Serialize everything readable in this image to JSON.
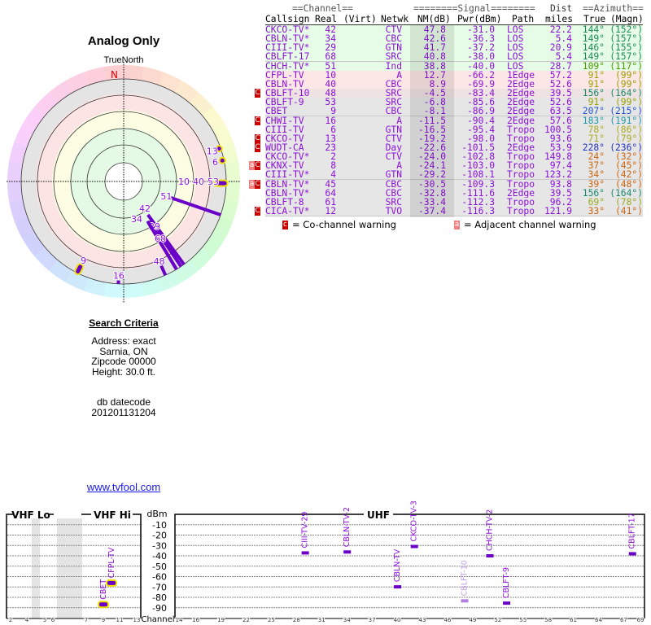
{
  "polar": {
    "title": "Analog Only",
    "north_label": "TrueNorth",
    "n_marker": "N",
    "stations": [
      {
        "label": "42",
        "az": 144,
        "nm": 47.8,
        "highlight": false
      },
      {
        "label": "34",
        "az": 149,
        "nm": 42.6,
        "highlight": false
      },
      {
        "label": "29",
        "az": 146,
        "nm": 41.7,
        "highlight": false
      },
      {
        "label": "68",
        "az": 149,
        "nm": 40.8,
        "highlight": false
      },
      {
        "label": "51",
        "az": 109,
        "nm": 38.8,
        "highlight": false
      },
      {
        "label": "10",
        "az": 91,
        "nm": 12.7,
        "highlight": true
      },
      {
        "label": "40",
        "az": 91,
        "nm": 8.9,
        "highlight": true
      },
      {
        "label": "48",
        "az": 156,
        "nm": -4.5,
        "highlight": false
      },
      {
        "label": "53",
        "az": 91,
        "nm": -6.8,
        "highlight": true
      },
      {
        "label": "9",
        "az": 207,
        "nm": -8.1,
        "highlight": true
      },
      {
        "label": "16",
        "az": 183,
        "nm": -11.5,
        "highlight": false
      },
      {
        "label": "6",
        "az": 78,
        "nm": -16.5,
        "highlight": true
      },
      {
        "label": "13",
        "az": 71,
        "nm": -19.2,
        "highlight": true
      }
    ]
  },
  "search": {
    "title": "Search Criteria",
    "address": "Address: exact",
    "city": "Sarnia, ON",
    "zipcode": "Zipcode 00000",
    "height": "Height: 30.0 ft.",
    "db_label": "db datecode",
    "db_value": "201201131204"
  },
  "link": "www.tvfool.com",
  "table": {
    "group_headers": {
      "channel": "==Channel==",
      "signal": "========Signal========",
      "dist": "Dist",
      "azimuth": "==Azimuth=="
    },
    "headers": {
      "callsign": "Callsign",
      "real": "Real",
      "virt": "(Virt)",
      "netwk": "Netwk",
      "nm": "NM(dB)",
      "pwr": "Pwr(dBm)",
      "path": "Path",
      "dist": "miles",
      "true": "True",
      "magn": "(Magn)"
    },
    "rows": [
      {
        "callsign": "CKCO-TV*",
        "real": "42",
        "netwk": "CTV",
        "nm": "47.8",
        "pwr": "-31.0",
        "path": "LOS",
        "dist": "22.2",
        "true": "144°",
        "magn": "(152°)",
        "bg": "green",
        "warn": "",
        "azcolor": "#1a8a5a"
      },
      {
        "callsign": "CBLN-TV*",
        "real": "34",
        "netwk": "CBC",
        "nm": "42.6",
        "pwr": "-36.3",
        "path": "LOS",
        "dist": "5.4",
        "true": "149°",
        "magn": "(157°)",
        "bg": "green",
        "warn": "",
        "azcolor": "#1a8a5a"
      },
      {
        "callsign": "CIII-TV*",
        "real": "29",
        "netwk": "GTN",
        "nm": "41.7",
        "pwr": "-37.2",
        "path": "LOS",
        "dist": "20.9",
        "true": "146°",
        "magn": "(155°)",
        "bg": "green",
        "warn": "",
        "azcolor": "#1a8a5a"
      },
      {
        "callsign": "CBLFT-17",
        "real": "68",
        "netwk": "SRC",
        "nm": "40.8",
        "pwr": "-38.0",
        "path": "LOS",
        "dist": "5.4",
        "true": "149°",
        "magn": "(157°)",
        "bg": "green",
        "warn": "",
        "azcolor": "#1a8a5a"
      },
      {
        "callsign": "CHCH-TV*",
        "real": "51",
        "netwk": "Ind",
        "nm": "38.8",
        "pwr": "-40.0",
        "path": "LOS",
        "dist": "28.7",
        "true": "109°",
        "magn": "(117°)",
        "bg": "green",
        "warn": "",
        "azcolor": "#4a9a00"
      },
      {
        "callsign": "CFPL-TV",
        "real": "10",
        "netwk": "A",
        "nm": "12.7",
        "pwr": "-66.2",
        "path": "1Edge",
        "dist": "57.2",
        "true": "91°",
        "magn": "(99°)",
        "bg": "pink",
        "warn": "",
        "azcolor": "#9aa000"
      },
      {
        "callsign": "CBLN-TV",
        "real": "40",
        "netwk": "CBC",
        "nm": "8.9",
        "pwr": "-69.9",
        "path": "2Edge",
        "dist": "52.6",
        "true": "91°",
        "magn": "(99°)",
        "bg": "pink",
        "warn": "",
        "azcolor": "#9aa000"
      },
      {
        "callsign": "CBLFT-10",
        "real": "48",
        "netwk": "SRC",
        "nm": "-4.5",
        "pwr": "-83.4",
        "path": "2Edge",
        "dist": "39.5",
        "true": "156°",
        "magn": "(164°)",
        "bg": "pinkgray",
        "warn": "c",
        "azcolor": "#1a8a6a"
      },
      {
        "callsign": "CBLFT-9",
        "real": "53",
        "netwk": "SRC",
        "nm": "-6.8",
        "pwr": "-85.6",
        "path": "2Edge",
        "dist": "52.6",
        "true": "91°",
        "magn": "(99°)",
        "bg": "gray",
        "warn": "",
        "azcolor": "#9aa000"
      },
      {
        "callsign": "CBET",
        "real": "9",
        "netwk": "CBC",
        "nm": "-8.1",
        "pwr": "-86.9",
        "path": "2Edge",
        "dist": "63.5",
        "true": "207°",
        "magn": "(215°)",
        "bg": "gray",
        "warn": "",
        "azcolor": "#2255cc"
      },
      {
        "callsign": "CHWI-TV",
        "real": "16",
        "netwk": "A",
        "nm": "-11.5",
        "pwr": "-90.4",
        "path": "2Edge",
        "dist": "57.6",
        "true": "183°",
        "magn": "(191°)",
        "bg": "gray",
        "warn": "c",
        "azcolor": "#2299aa"
      },
      {
        "callsign": "CIII-TV",
        "real": "6",
        "netwk": "GTN",
        "nm": "-16.5",
        "pwr": "-95.4",
        "path": "Tropo",
        "dist": "100.5",
        "true": "78°",
        "magn": "(86°)",
        "bg": "gray",
        "warn": "",
        "azcolor": "#aaaa22"
      },
      {
        "callsign": "CKCO-TV",
        "real": "13",
        "netwk": "CTV",
        "nm": "-19.2",
        "pwr": "-98.0",
        "path": "Tropo",
        "dist": "93.6",
        "true": "71°",
        "magn": "(79°)",
        "bg": "gray",
        "warn": "c",
        "azcolor": "#aaaa22"
      },
      {
        "callsign": "WUDT-CA",
        "real": "23",
        "netwk": "Day",
        "nm": "-22.6",
        "pwr": "-101.5",
        "path": "2Edge",
        "dist": "53.9",
        "true": "228°",
        "magn": "(236°)",
        "bg": "gray",
        "warn": "c",
        "azcolor": "#2233bb"
      },
      {
        "callsign": "CKCO-TV*",
        "real": "2",
        "netwk": "CTV",
        "nm": "-24.0",
        "pwr": "-102.8",
        "path": "Tropo",
        "dist": "149.8",
        "true": "24°",
        "magn": "(32°)",
        "bg": "gray",
        "warn": "",
        "azcolor": "#cc6611"
      },
      {
        "callsign": "CKNX-TV",
        "real": "8",
        "netwk": "A",
        "nm": "-24.1",
        "pwr": "-103.0",
        "path": "Tropo",
        "dist": "97.4",
        "true": "37°",
        "magn": "(45°)",
        "bg": "gray",
        "warn": "ac",
        "azcolor": "#cc6611"
      },
      {
        "callsign": "CIII-TV*",
        "real": "4",
        "netwk": "GTN",
        "nm": "-29.2",
        "pwr": "-108.1",
        "path": "Tropo",
        "dist": "123.2",
        "true": "34°",
        "magn": "(42°)",
        "bg": "gray",
        "warn": "",
        "azcolor": "#cc6611"
      },
      {
        "callsign": "CBLN-TV*",
        "real": "45",
        "netwk": "CBC",
        "nm": "-30.5",
        "pwr": "-109.3",
        "path": "Tropo",
        "dist": "93.8",
        "true": "39°",
        "magn": "(48°)",
        "bg": "gray",
        "warn": "ac",
        "azcolor": "#cc6611"
      },
      {
        "callsign": "CBLN-TV*",
        "real": "64",
        "netwk": "CBC",
        "nm": "-32.8",
        "pwr": "-111.6",
        "path": "2Edge",
        "dist": "39.5",
        "true": "156°",
        "magn": "(164°)",
        "bg": "gray",
        "warn": "",
        "azcolor": "#1a8a6a"
      },
      {
        "callsign": "CBLFT-8",
        "real": "61",
        "netwk": "SRC",
        "nm": "-33.4",
        "pwr": "-112.3",
        "path": "Tropo",
        "dist": "96.2",
        "true": "69°",
        "magn": "(78°)",
        "bg": "gray",
        "warn": "",
        "azcolor": "#99aa22"
      },
      {
        "callsign": "CICA-TV*",
        "real": "12",
        "netwk": "TVO",
        "nm": "-37.4",
        "pwr": "-116.3",
        "path": "Tropo",
        "dist": "121.9",
        "true": "33°",
        "magn": "(41°)",
        "bg": "gray",
        "warn": "c",
        "azcolor": "#cc6611"
      }
    ],
    "legend": {
      "co_icon": "c",
      "co_label": "= Co-channel warning",
      "adj_icon": "a",
      "adj_label": "= Adjacent channel warning"
    }
  },
  "colors": {
    "station_text": "#8b10d8",
    "co_warn": "#cc0000",
    "adj_warn": "#f08080",
    "green_row": "#e6fce6",
    "pink_row": "#fde6e6",
    "pinkgray_row": "#efe2e2",
    "gray_row": "#e6e6e6"
  },
  "spectrum": {
    "vhf_lo_label": "VHF Lo",
    "vhf_hi_label": "VHF Hi",
    "uhf_label": "UHF",
    "dbm_label": "dBm",
    "channel_label": "Channel",
    "dbm_ticks": [
      "-10",
      "-20",
      "-30",
      "-40",
      "-50",
      "-60",
      "-70",
      "-80",
      "-90"
    ],
    "vhf_ticks": [
      "2",
      "4",
      "5",
      "6",
      "7",
      "9",
      "11",
      "13"
    ],
    "uhf_ticks": [
      "14",
      "16",
      "19",
      "22",
      "25",
      "28",
      "31",
      "34",
      "37",
      "40",
      "43",
      "46",
      "49",
      "52",
      "55",
      "58",
      "61",
      "64",
      "67",
      "69"
    ],
    "markers": [
      {
        "label": "CBET",
        "channel": 9,
        "dbm": -86.9,
        "highlight": true,
        "faded": false
      },
      {
        "label": "CFPL-TV",
        "channel": 10,
        "dbm": -66.2,
        "highlight": true,
        "faded": false
      },
      {
        "label": "CIII-TV-29",
        "channel": 29,
        "dbm": -37.2,
        "highlight": false,
        "faded": false
      },
      {
        "label": "CBLN-TV-2",
        "channel": 34,
        "dbm": -36.3,
        "highlight": false,
        "faded": false
      },
      {
        "label": "CBLN-TV",
        "channel": 40,
        "dbm": -69.9,
        "highlight": false,
        "faded": false
      },
      {
        "label": "CKCO-TV-3",
        "channel": 42,
        "dbm": -31.0,
        "highlight": false,
        "faded": false
      },
      {
        "label": "CBLFT-10",
        "channel": 48,
        "dbm": -83.4,
        "highlight": false,
        "faded": true
      },
      {
        "label": "CHCH-TV-2",
        "channel": 51,
        "dbm": -40.0,
        "highlight": false,
        "faded": false
      },
      {
        "label": "CBLFT-9",
        "channel": 53,
        "dbm": -85.6,
        "highlight": false,
        "faded": false
      },
      {
        "label": "CBLFT-17",
        "channel": 68,
        "dbm": -38.0,
        "highlight": false,
        "faded": false
      }
    ]
  }
}
